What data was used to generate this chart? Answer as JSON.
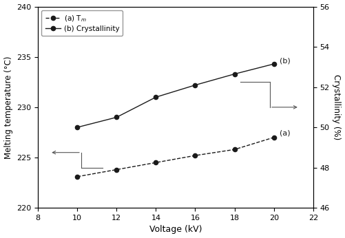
{
  "voltage": [
    10,
    12,
    14,
    16,
    18,
    20
  ],
  "tm": [
    223.1,
    223.8,
    224.5,
    225.2,
    225.8,
    227.0
  ],
  "crystallinity_left": [
    228.0,
    229.0,
    231.0,
    232.2,
    233.3,
    234.3
  ],
  "xlim": [
    8,
    22
  ],
  "xticks": [
    8,
    10,
    12,
    14,
    16,
    18,
    20,
    22
  ],
  "ylim_left": [
    220,
    240
  ],
  "yticks_left": [
    220,
    225,
    230,
    235,
    240
  ],
  "ylim_right": [
    46,
    56
  ],
  "yticks_right": [
    46,
    48,
    50,
    52,
    54,
    56
  ],
  "xlabel": "Voltage (kV)",
  "ylabel_left": "Melting temperature (°C)",
  "ylabel_right": "Crystallinity (%)",
  "legend_a": "(a) T$_m$",
  "legend_b": "(b) Crystallinity",
  "label_a": "(a)",
  "label_b": "(b)",
  "line_color": "#1a1a1a",
  "marker_color": "#1a1a1a",
  "bg_color": "#ffffff",
  "arrow_color": "#555555",
  "figsize": [
    5.01,
    3.46
  ],
  "dpi": 100
}
